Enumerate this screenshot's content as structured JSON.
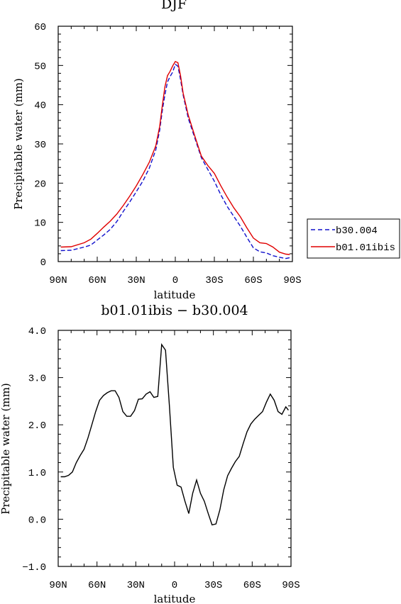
{
  "chart_data": [
    {
      "type": "line",
      "title": "DJF",
      "xlabel": "latitude",
      "ylabel": "Precipitable water (mm)",
      "xlim": [
        -90,
        90
      ],
      "ylim": [
        0,
        60
      ],
      "x_ticks": [
        "90N",
        "60N",
        "30N",
        "0",
        "30S",
        "60S",
        "90S"
      ],
      "y_ticks": [
        "0",
        "10",
        "20",
        "30",
        "40",
        "50",
        "60"
      ],
      "legend_position": "right",
      "series": [
        {
          "name": "b30.004",
          "color": "#1010cc",
          "style": "dashed",
          "x": [
            -88,
            -80,
            -70,
            -65,
            -60,
            -55,
            -50,
            -45,
            -40,
            -35,
            -30,
            -25,
            -20,
            -15,
            -12,
            -10,
            -8,
            -6,
            -4,
            -2,
            0,
            2,
            4,
            6,
            10,
            15,
            20,
            25,
            30,
            35,
            40,
            45,
            50,
            55,
            60,
            65,
            70,
            75,
            80,
            85,
            88
          ],
          "y": [
            2.8,
            2.9,
            3.7,
            4.2,
            5.5,
            6.8,
            8.2,
            10.2,
            12.8,
            15.2,
            17.8,
            20.5,
            23.8,
            28.5,
            33.5,
            38.5,
            42.5,
            45.8,
            47.2,
            48.3,
            50.3,
            49.8,
            46.5,
            42.5,
            36.5,
            31.5,
            26.5,
            23.5,
            20.5,
            17.0,
            14.0,
            11.5,
            9.0,
            6.2,
            3.5,
            2.5,
            2.2,
            1.5,
            1.1,
            0.8,
            1.0
          ]
        },
        {
          "name": "b01.01ibis",
          "color": "#e00000",
          "style": "solid",
          "x": [
            -88,
            -80,
            -70,
            -65,
            -60,
            -55,
            -50,
            -45,
            -40,
            -35,
            -30,
            -25,
            -20,
            -15,
            -12,
            -10,
            -8,
            -6,
            -4,
            -2,
            0,
            2,
            4,
            6,
            10,
            15,
            20,
            25,
            30,
            35,
            40,
            45,
            50,
            55,
            60,
            65,
            70,
            75,
            80,
            85,
            88
          ],
          "y": [
            3.7,
            3.8,
            4.8,
            5.7,
            7.2,
            8.8,
            10.3,
            12.1,
            14.3,
            16.7,
            19.3,
            22.2,
            25.3,
            29.5,
            34.5,
            39.8,
            44.5,
            47.4,
            48.5,
            49.9,
            51.0,
            50.7,
            47.5,
            43.0,
            37.3,
            32.0,
            26.9,
            24.5,
            22.5,
            19.3,
            16.4,
            13.7,
            11.4,
            8.6,
            6.0,
            4.8,
            4.6,
            3.7,
            2.4,
            1.9,
            1.8
          ]
        }
      ]
    },
    {
      "type": "line",
      "title": "b01.01ibis − b30.004",
      "xlabel": "latitude",
      "ylabel": "Precipitable water (mm)",
      "xlim": [
        -90,
        90
      ],
      "ylim": [
        -1,
        4
      ],
      "x_ticks": [
        "90N",
        "60N",
        "30N",
        "0",
        "30S",
        "60S",
        "90S"
      ],
      "y_ticks": [
        "−1.0",
        "0.0",
        "1.0",
        "2.0",
        "3.0",
        "4.0"
      ],
      "series": [
        {
          "name": "",
          "color": "#000000",
          "style": "solid",
          "x": [
            -88,
            -85,
            -82,
            -79,
            -76,
            -73,
            -70,
            -67,
            -64,
            -61,
            -58,
            -55,
            -52,
            -49,
            -46,
            -43,
            -40,
            -37,
            -34,
            -31,
            -28,
            -25,
            -22,
            -19,
            -16,
            -13,
            -10,
            -7,
            -4,
            -1,
            2,
            5,
            8,
            11,
            14,
            17,
            20,
            23,
            26,
            29,
            32,
            35,
            38,
            41,
            44,
            47,
            50,
            53,
            56,
            59,
            62,
            65,
            68,
            71,
            74,
            77,
            80,
            83,
            86,
            88
          ],
          "y": [
            0.9,
            0.9,
            0.93,
            1.0,
            1.2,
            1.35,
            1.48,
            1.72,
            2.0,
            2.28,
            2.52,
            2.62,
            2.68,
            2.72,
            2.72,
            2.58,
            2.28,
            2.18,
            2.18,
            2.3,
            2.54,
            2.55,
            2.65,
            2.7,
            2.58,
            2.6,
            3.7,
            3.58,
            2.4,
            1.1,
            0.72,
            0.68,
            0.38,
            0.12,
            0.55,
            0.83,
            0.55,
            0.38,
            0.12,
            -0.12,
            -0.1,
            0.2,
            0.62,
            0.92,
            1.08,
            1.22,
            1.33,
            1.6,
            1.85,
            2.02,
            2.12,
            2.2,
            2.28,
            2.48,
            2.65,
            2.52,
            2.28,
            2.22,
            2.38,
            2.31
          ]
        }
      ]
    }
  ]
}
